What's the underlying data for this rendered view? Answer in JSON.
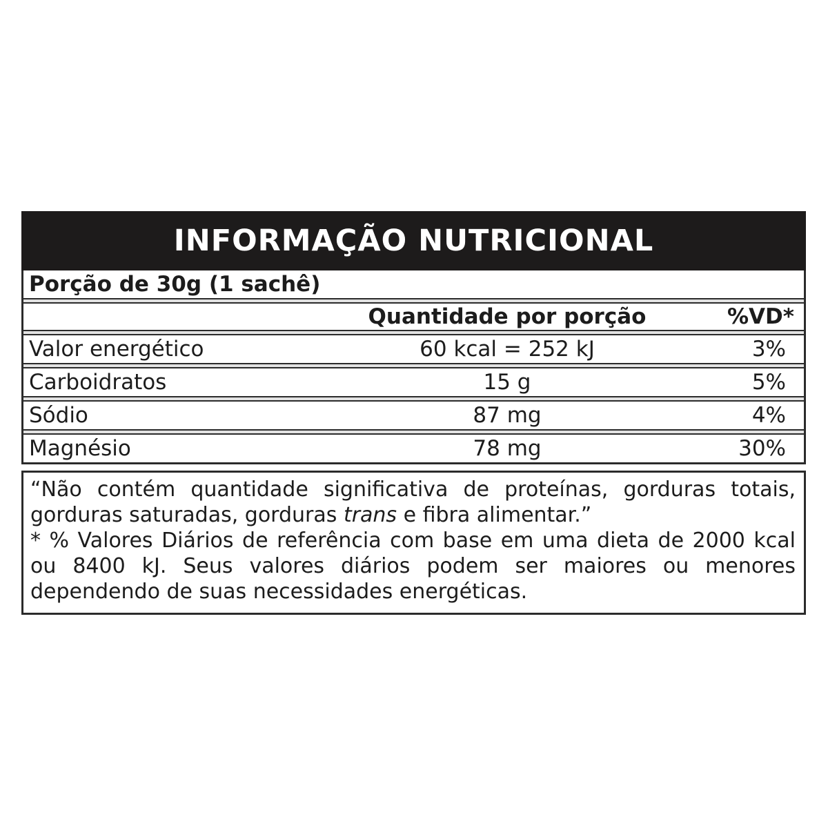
{
  "label": {
    "title": "INFORMAÇÃO NUTRICIONAL",
    "serving_size": "Porção de 30g (1 sachê)",
    "columns": {
      "amount": "Quantidade por porção",
      "daily_value": "%VD*"
    },
    "nutrients": [
      {
        "name": "Valor energético",
        "amount": "60 kcal = 252 kJ",
        "dv": "3%"
      },
      {
        "name": "Carboidratos",
        "amount": "15 g",
        "dv": "5%"
      },
      {
        "name": "Sódio",
        "amount": "87 mg",
        "dv": "4%"
      },
      {
        "name": "Magnésio",
        "amount": "78 mg",
        "dv": "30%"
      }
    ],
    "footnote": {
      "quote_before_italic": "“Não contém quantidade significativa de proteínas, gorduras totais, gorduras saturadas, gorduras ",
      "italic_word": "trans",
      "quote_after_italic": " e fibra alimentar.”",
      "daily_values_note": "* % Valores Diários de referência com base em uma dieta de 2000 kcal ou 8400 kJ. Seus valores diários podem ser maiores ou menores dependendo de suas necessidades energéticas."
    },
    "colors": {
      "header_bg": "#1d1b1b",
      "header_text": "#ffffff",
      "border": "#2b2b2b",
      "text": "#1c1c1c"
    }
  }
}
